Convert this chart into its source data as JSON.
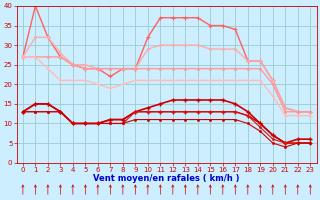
{
  "x": [
    0,
    1,
    2,
    3,
    4,
    5,
    6,
    7,
    8,
    9,
    10,
    11,
    12,
    13,
    14,
    15,
    16,
    17,
    18,
    19,
    20,
    21,
    22,
    23
  ],
  "series": [
    {
      "name": "max_gust",
      "color": "#ff6060",
      "lw": 1.0,
      "marker": "+",
      "ms": 3,
      "mew": 0.8,
      "values": [
        27,
        40,
        32,
        27,
        25,
        24,
        24,
        22,
        24,
        24,
        32,
        37,
        37,
        37,
        37,
        35,
        35,
        34,
        26,
        26,
        21,
        14,
        13,
        13
      ]
    },
    {
      "name": "mean_high",
      "color": "#ffaaaa",
      "lw": 1.0,
      "marker": "o",
      "ms": 1.5,
      "mew": 0.6,
      "values": [
        27,
        32,
        32,
        28,
        25,
        25,
        24,
        24,
        24,
        24,
        29,
        30,
        30,
        30,
        30,
        29,
        29,
        29,
        26,
        26,
        21,
        14,
        13,
        13
      ]
    },
    {
      "name": "mean_mid",
      "color": "#ff9999",
      "lw": 1.0,
      "marker": "o",
      "ms": 1.5,
      "mew": 0.6,
      "values": [
        27,
        27,
        27,
        27,
        25,
        24,
        24,
        24,
        24,
        24,
        24,
        24,
        24,
        24,
        24,
        24,
        24,
        24,
        24,
        24,
        20,
        13,
        13,
        13
      ]
    },
    {
      "name": "mean_low",
      "color": "#ffbbbb",
      "lw": 1.0,
      "marker": "+",
      "ms": 2.5,
      "mew": 0.6,
      "values": [
        27,
        27,
        24,
        21,
        21,
        21,
        20,
        19,
        20,
        21,
        21,
        21,
        21,
        21,
        21,
        21,
        21,
        21,
        21,
        21,
        17,
        12,
        12,
        12
      ]
    },
    {
      "name": "wind_main",
      "color": "#cc0000",
      "lw": 1.2,
      "marker": "+",
      "ms": 3.5,
      "mew": 1.0,
      "values": [
        13,
        15,
        15,
        13,
        10,
        10,
        10,
        11,
        11,
        13,
        14,
        15,
        16,
        16,
        16,
        16,
        16,
        15,
        13,
        10,
        7,
        5,
        6,
        6
      ]
    },
    {
      "name": "wind_line2",
      "color": "#cc0000",
      "lw": 1.0,
      "marker": "+",
      "ms": 2.5,
      "mew": 0.8,
      "values": [
        13,
        15,
        15,
        13,
        10,
        10,
        10,
        11,
        11,
        13,
        13,
        13,
        13,
        13,
        13,
        13,
        13,
        13,
        12,
        10,
        7,
        5,
        5,
        5
      ]
    },
    {
      "name": "wind_line3",
      "color": "#dd1111",
      "lw": 0.8,
      "marker": "o",
      "ms": 1.5,
      "mew": 0.5,
      "values": [
        13,
        13,
        13,
        13,
        10,
        10,
        10,
        10,
        10,
        13,
        13,
        13,
        13,
        13,
        13,
        13,
        13,
        13,
        12,
        9,
        6,
        5,
        5,
        5
      ]
    },
    {
      "name": "wind_line4",
      "color": "#cc0000",
      "lw": 0.8,
      "marker": "o",
      "ms": 1.5,
      "mew": 0.5,
      "values": [
        13,
        13,
        13,
        13,
        10,
        10,
        10,
        10,
        10,
        11,
        11,
        11,
        11,
        11,
        11,
        11,
        11,
        11,
        10,
        8,
        5,
        4,
        5,
        5
      ]
    }
  ],
  "xlabel": "Vent moyen/en rafales ( km/h )",
  "xlim": [
    -0.5,
    23.5
  ],
  "ylim": [
    0,
    40
  ],
  "yticks": [
    0,
    5,
    10,
    15,
    20,
    25,
    30,
    35,
    40
  ],
  "xticks": [
    0,
    1,
    2,
    3,
    4,
    5,
    6,
    7,
    8,
    9,
    10,
    11,
    12,
    13,
    14,
    15,
    16,
    17,
    18,
    19,
    20,
    21,
    22,
    23
  ],
  "bg_color": "#cceeff",
  "grid_color": "#99cccc",
  "tick_color": "#cc0000",
  "xlabel_color": "#0000cc",
  "spine_color": "#cc0000"
}
